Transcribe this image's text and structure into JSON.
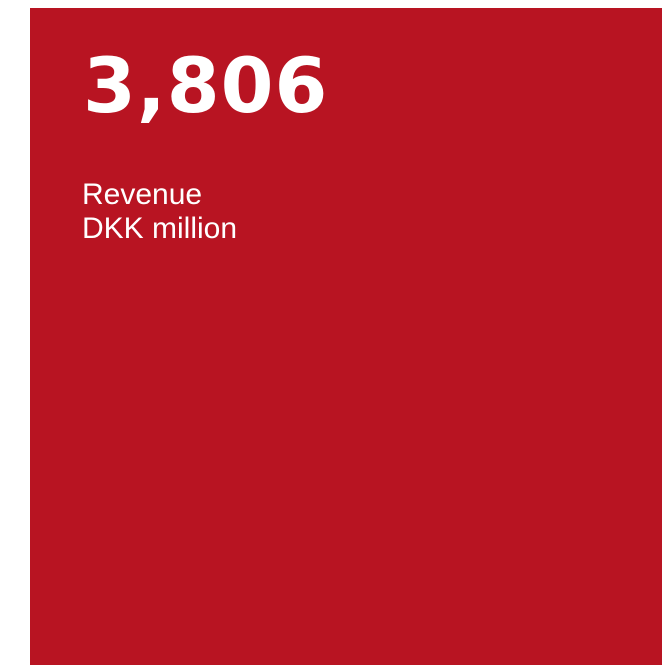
{
  "kpi": {
    "value": "3,806",
    "label": "Revenue",
    "unit": "DKK million"
  },
  "colors": {
    "tile_background": "#b81422",
    "text": "#ffffff",
    "page_background": "#ffffff"
  }
}
